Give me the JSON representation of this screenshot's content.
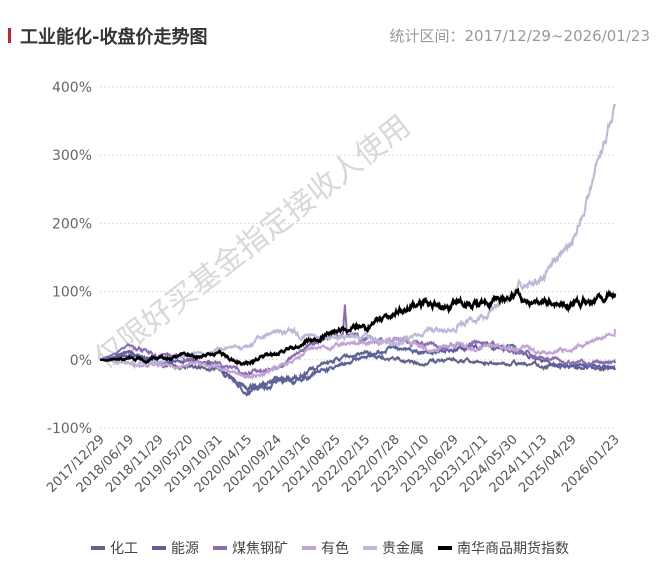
{
  "header": {
    "title": "工业能化-收盘价走势图",
    "range": "统计区间：2017/12/29~2026/01/23"
  },
  "watermark": "仅限好买基金指定接收人使用",
  "chart_data": {
    "type": "line",
    "title": "工业能化-收盘价走势图",
    "xlabel": "",
    "ylabel": "",
    "ylim": [
      -100,
      400
    ],
    "yticks": [
      "400%",
      "300%",
      "200%",
      "100%",
      "0%",
      "-100%"
    ],
    "ytick_values": [
      400,
      300,
      200,
      100,
      0,
      -100
    ],
    "x": [
      "2017/12/29",
      "2018/06/19",
      "2018/11/29",
      "2019/05/20",
      "2019/10/31",
      "2020/04/15",
      "2020/09/24",
      "2021/03/16",
      "2021/08/25",
      "2022/02/15",
      "2022/07/28",
      "2023/01/10",
      "2023/06/29",
      "2023/12/11",
      "2024/05/30",
      "2024/11/13",
      "2025/04/29",
      "2026/01/23"
    ],
    "grid": true,
    "legend_position": "bottom",
    "series": [
      {
        "name": "化工",
        "color": "#62628f",
        "values": [
          0,
          5,
          -5,
          -10,
          -15,
          -40,
          -30,
          -20,
          0,
          10,
          0,
          -5,
          0,
          -5,
          -5,
          -10,
          -10,
          -15
        ]
      },
      {
        "name": "能源",
        "color": "#5b61a0",
        "values": [
          0,
          10,
          -5,
          0,
          -10,
          -45,
          -35,
          -25,
          -10,
          5,
          20,
          10,
          15,
          20,
          15,
          0,
          -10,
          -10
        ]
      },
      {
        "name": "煤焦钢矿",
        "color": "#8a6db0",
        "values": [
          0,
          20,
          5,
          0,
          -5,
          -20,
          -10,
          20,
          40,
          30,
          30,
          20,
          20,
          25,
          10,
          5,
          -5,
          -5
        ]
      },
      {
        "name": "有色",
        "color": "#c4a3d4",
        "values": [
          0,
          -5,
          -10,
          -5,
          -10,
          -25,
          -10,
          10,
          20,
          25,
          30,
          15,
          20,
          20,
          20,
          10,
          15,
          45
        ]
      },
      {
        "name": "贵金属",
        "color": "#b9b9d9",
        "values": [
          0,
          -5,
          -3,
          5,
          15,
          20,
          45,
          35,
          30,
          35,
          25,
          40,
          50,
          65,
          100,
          120,
          175,
          375
        ]
      },
      {
        "name": "南华商品期货指数",
        "color": "#000000",
        "values": [
          0,
          0,
          2,
          5,
          8,
          -5,
          10,
          25,
          40,
          45,
          70,
          80,
          80,
          85,
          95,
          85,
          80,
          97
        ]
      }
    ]
  }
}
